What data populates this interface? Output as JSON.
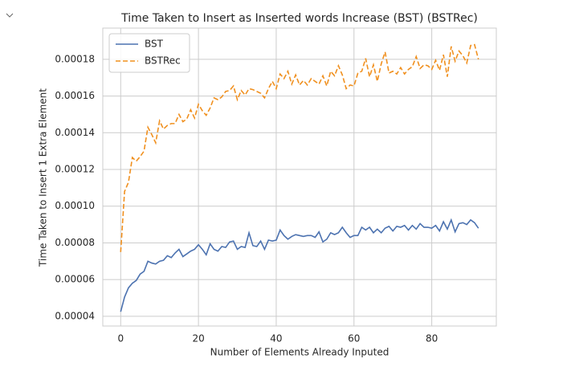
{
  "chart_data": {
    "type": "line",
    "title": "Time Taken to Insert as Inserted words Increase (BST) (BSTRec)",
    "x_label": "Number of Elements Already Inputed",
    "y_label": "Time Taken to Insert 1 Extra Element",
    "x": [
      0,
      1,
      2,
      3,
      4,
      5,
      6,
      7,
      8,
      9,
      10,
      11,
      12,
      13,
      14,
      15,
      16,
      17,
      18,
      19,
      20,
      21,
      22,
      23,
      24,
      25,
      26,
      27,
      28,
      29,
      30,
      31,
      32,
      33,
      34,
      35,
      36,
      37,
      38,
      39,
      40,
      41,
      42,
      43,
      44,
      45,
      46,
      47,
      48,
      49,
      50,
      51,
      52,
      53,
      54,
      55,
      56,
      57,
      58,
      59,
      60,
      61,
      62,
      63,
      64,
      65,
      66,
      67,
      68,
      69,
      70,
      71,
      72,
      73,
      74,
      75,
      76,
      77,
      78,
      79,
      80,
      81,
      82,
      83,
      84,
      85,
      86,
      87,
      88,
      89,
      90,
      91,
      92
    ],
    "series": [
      {
        "name": "BST",
        "color": "#4c72b0",
        "linestyle": "solid",
        "values": [
          4.25e-05,
          5.05e-05,
          5.55e-05,
          5.8e-05,
          5.95e-05,
          6.3e-05,
          6.45e-05,
          7e-05,
          6.9e-05,
          6.85e-05,
          7e-05,
          7.05e-05,
          7.3e-05,
          7.2e-05,
          7.45e-05,
          7.65e-05,
          7.25e-05,
          7.4e-05,
          7.55e-05,
          7.65e-05,
          7.9e-05,
          7.65e-05,
          7.35e-05,
          7.95e-05,
          7.65e-05,
          7.55e-05,
          7.8e-05,
          7.75e-05,
          8.05e-05,
          8.1e-05,
          7.65e-05,
          7.8e-05,
          7.75e-05,
          8.55e-05,
          7.85e-05,
          7.8e-05,
          8.1e-05,
          7.65e-05,
          8.15e-05,
          8.1e-05,
          8.15e-05,
          8.7e-05,
          8.4e-05,
          8.2e-05,
          8.35e-05,
          8.45e-05,
          8.4e-05,
          8.35e-05,
          8.4e-05,
          8.4e-05,
          8.3e-05,
          8.6e-05,
          8.05e-05,
          8.2e-05,
          8.55e-05,
          8.45e-05,
          8.55e-05,
          8.85e-05,
          8.55e-05,
          8.3e-05,
          8.4e-05,
          8.4e-05,
          8.85e-05,
          8.7e-05,
          8.85e-05,
          8.55e-05,
          8.75e-05,
          8.55e-05,
          8.8e-05,
          8.9e-05,
          8.65e-05,
          8.9e-05,
          8.85e-05,
          8.95e-05,
          8.7e-05,
          8.95e-05,
          8.75e-05,
          9.05e-05,
          8.85e-05,
          8.85e-05,
          8.8e-05,
          8.95e-05,
          8.65e-05,
          9.15e-05,
          8.75e-05,
          9.25e-05,
          8.6e-05,
          9.05e-05,
          9.1e-05,
          9e-05,
          9.25e-05,
          9.1e-05,
          8.8e-05
        ]
      },
      {
        "name": "BSTRec",
        "color": "#f0901f",
        "linestyle": "dashed",
        "values": [
          7.5e-05,
          0.000108,
          0.000113,
          0.0001265,
          0.0001245,
          0.000127,
          0.00013,
          0.000143,
          0.000139,
          0.0001345,
          0.0001465,
          0.000142,
          0.000144,
          0.000145,
          0.000145,
          0.00015,
          0.000146,
          0.0001475,
          0.0001525,
          0.000148,
          0.0001555,
          0.000152,
          0.0001495,
          0.0001535,
          0.000159,
          0.000158,
          0.0001595,
          0.0001625,
          0.000163,
          0.0001655,
          0.000158,
          0.000163,
          0.0001605,
          0.000164,
          0.0001635,
          0.0001625,
          0.0001615,
          0.000159,
          0.000164,
          0.000168,
          0.000164,
          0.000172,
          0.0001695,
          0.0001735,
          0.0001665,
          0.0001715,
          0.000166,
          0.0001685,
          0.000166,
          0.0001695,
          0.000168,
          0.0001665,
          0.000171,
          0.0001655,
          0.0001735,
          0.000171,
          0.0001765,
          0.0001715,
          0.000164,
          0.000166,
          0.0001655,
          0.0001725,
          0.0001735,
          0.0001805,
          0.0001705,
          0.000177,
          0.000168,
          0.0001775,
          0.000184,
          0.0001725,
          0.0001735,
          0.000172,
          0.0001755,
          0.000172,
          0.0001745,
          0.000176,
          0.0001815,
          0.000175,
          0.000177,
          0.0001765,
          0.0001745,
          0.0001795,
          0.000174,
          0.0001825,
          0.0001705,
          0.000187,
          0.000179,
          0.0001845,
          0.000182,
          0.000178,
          0.0001875,
          0.000188,
          0.00018
        ]
      }
    ],
    "xlim": [
      -4.6,
      96.6
    ],
    "xticks": [
      0,
      20,
      40,
      60,
      80
    ],
    "ylim": [
      3.47e-05,
      0.000197
    ],
    "yticks": [
      4e-05,
      6e-05,
      8e-05,
      {
        "value": 0.0001,
        "label": "0.00010"
      },
      0.00012,
      0.00014,
      0.00016,
      0.00018
    ],
    "grid": true,
    "legend": "upper left"
  }
}
